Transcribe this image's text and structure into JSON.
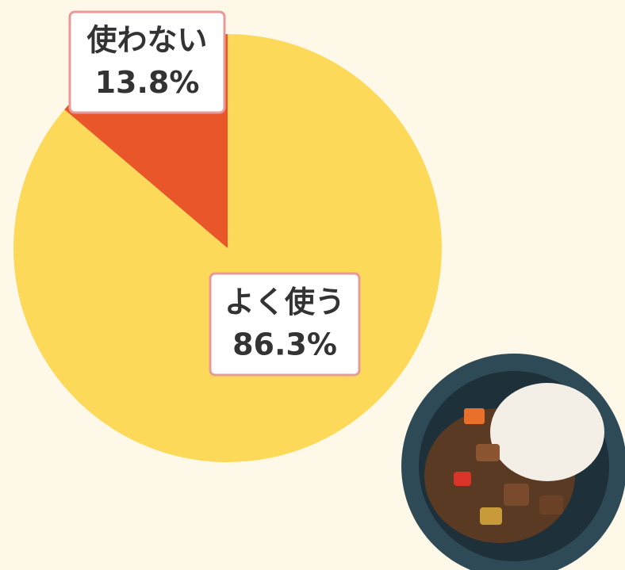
{
  "chart_data": {
    "type": "pie",
    "categories": [
      "よく使う",
      "使わない"
    ],
    "values": [
      86.3,
      13.8
    ],
    "value_labels": [
      "86.3%",
      "13.8%"
    ],
    "colors": [
      "#fdd95a",
      "#e8562a"
    ]
  }
}
